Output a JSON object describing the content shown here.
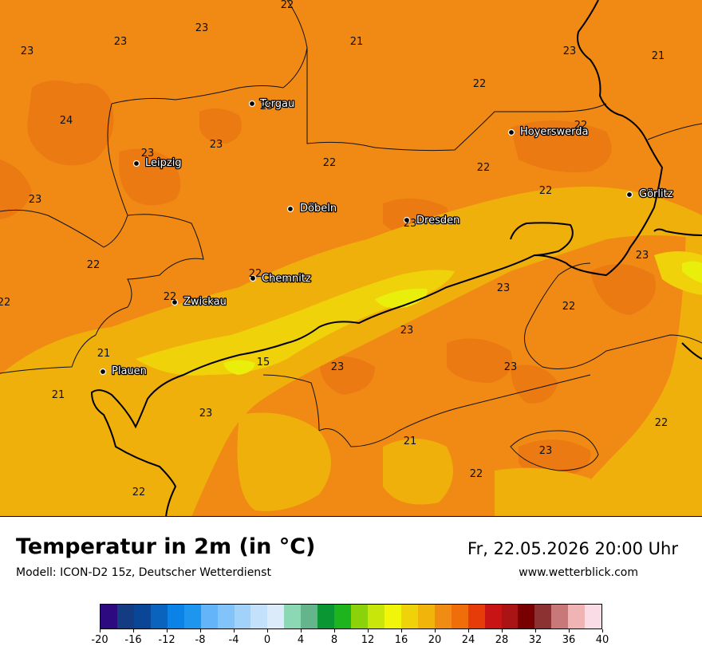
{
  "map": {
    "cities": [
      {
        "name": "Torgau"
      },
      {
        "name": "Hoyerswerda"
      },
      {
        "name": "Leipzig"
      },
      {
        "name": "Görlitz"
      },
      {
        "name": "Döbeln"
      },
      {
        "name": "Dresden"
      },
      {
        "name": "Chemnitz"
      },
      {
        "name": "Zwickau"
      },
      {
        "name": "Plauen"
      }
    ],
    "temperature_labels": [
      "22",
      "23",
      "23",
      "21",
      "23",
      "21",
      "22",
      "24",
      "23",
      "22",
      "23",
      "23",
      "23",
      "22",
      "22",
      "22",
      "23",
      "23",
      "22",
      "22",
      "23",
      "22",
      "22",
      "21",
      "23",
      "15",
      "23",
      "23",
      "21",
      "23",
      "22",
      "21",
      "22",
      "23",
      "22",
      "22"
    ]
  },
  "footer": {
    "title": "Temperatur in 2m (in °C)",
    "subtitle": "Modell: ICON-D2 15z, Deutscher Wetterdienst",
    "datetime": "Fr, 22.05.2026 20:00 Uhr",
    "website": "www.wetterblick.com"
  },
  "colorbar": {
    "ticks": [
      "-20",
      "-16",
      "-12",
      "-8",
      "-4",
      "0",
      "4",
      "8",
      "12",
      "16",
      "20",
      "24",
      "28",
      "32",
      "36",
      "40"
    ],
    "colors": [
      "#2d0a7f",
      "#143c82",
      "#0a4696",
      "#0a64be",
      "#0a82e6",
      "#1e96f0",
      "#64b4fa",
      "#82c3fa",
      "#a0d2fa",
      "#c3e1fa",
      "#dcebfa",
      "#8cd7b4",
      "#64b48c",
      "#0a9632",
      "#1eb41e",
      "#8cd20a",
      "#c8e60a",
      "#f0f50a",
      "#f0d20a",
      "#f0b40a",
      "#f08c14",
      "#f06e0a",
      "#e63c0a",
      "#c81414",
      "#aa1414",
      "#780000",
      "#8c3232",
      "#c87878",
      "#f0b4b4",
      "#fadce6"
    ]
  }
}
